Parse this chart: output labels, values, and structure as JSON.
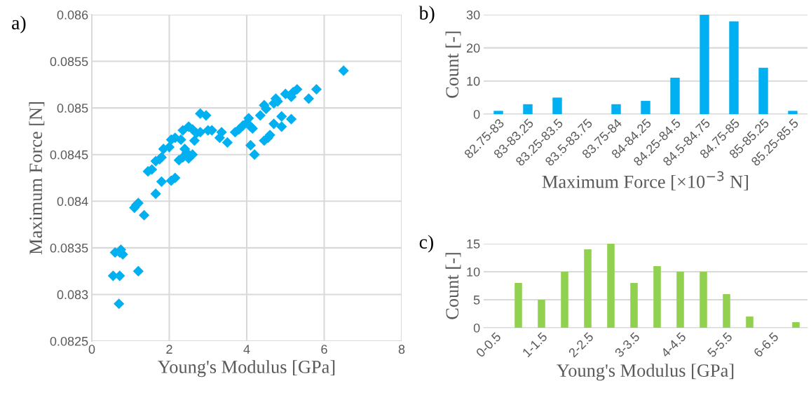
{
  "chart_data": [
    {
      "type": "scatter",
      "xlabel": "Young's Modulus [GPa]",
      "ylabel": "Maximum Force [N]",
      "annotations": [
        "a)"
      ],
      "marker": "diamond",
      "grid": true,
      "xlim": [
        0,
        8
      ],
      "xticks": [
        0,
        2,
        4,
        6,
        8
      ],
      "ylim": [
        0.0825,
        0.086
      ],
      "yticks": [
        0.0825,
        0.083,
        0.0835,
        0.084,
        0.0845,
        0.085,
        0.0855,
        0.086
      ],
      "series": [
        {
          "color": "#00b0f0",
          "x": [
            0.55,
            0.72,
            0.7,
            1.2,
            0.6,
            0.75,
            0.8,
            0.72,
            1.35,
            1.1,
            1.2,
            1.15,
            1.65,
            1.8,
            2.05,
            2.15,
            1.45,
            1.55,
            1.65,
            1.75,
            1.8,
            1.85,
            2.0,
            2.05,
            2.15,
            2.3,
            2.25,
            2.35,
            2.4,
            2.45,
            2.5,
            2.6,
            2.35,
            2.5,
            2.6,
            2.7,
            2.65,
            2.8,
            2.8,
            2.95,
            3.0,
            3.1,
            3.3,
            3.35,
            3.5,
            3.7,
            3.8,
            3.9,
            4.0,
            4.05,
            4.1,
            4.15,
            4.1,
            4.2,
            4.35,
            4.45,
            4.5,
            4.45,
            4.55,
            4.6,
            4.7,
            4.7,
            4.8,
            4.75,
            4.9,
            4.9,
            5.0,
            5.15,
            5.15,
            5.2,
            5.3,
            5.6,
            5.8,
            6.5
          ],
          "values": [
            0.0832,
            0.0832,
            0.0829,
            0.08325,
            0.08345,
            0.08348,
            0.08343,
            0.08345,
            0.08385,
            0.08393,
            0.08398,
            0.08396,
            0.08408,
            0.08421,
            0.08422,
            0.08425,
            0.08432,
            0.08434,
            0.08443,
            0.08445,
            0.08447,
            0.08456,
            0.08458,
            0.08466,
            0.08468,
            0.08466,
            0.08444,
            0.08447,
            0.08456,
            0.08452,
            0.08446,
            0.0845,
            0.08476,
            0.0848,
            0.08477,
            0.08473,
            0.08465,
            0.08474,
            0.08494,
            0.08492,
            0.08476,
            0.08476,
            0.08468,
            0.08474,
            0.08463,
            0.08474,
            0.08477,
            0.08481,
            0.08484,
            0.08489,
            0.0848,
            0.08478,
            0.0846,
            0.0845,
            0.08492,
            0.08503,
            0.08499,
            0.08465,
            0.08468,
            0.08471,
            0.08483,
            0.08505,
            0.08507,
            0.0851,
            0.08491,
            0.0848,
            0.08515,
            0.08488,
            0.08512,
            0.08517,
            0.0852,
            0.0851,
            0.0852,
            0.0854
          ]
        }
      ]
    },
    {
      "type": "bar",
      "xlabel": "Maximum Force [×10$^{−3}$ N]",
      "ylabel": "Count [-]",
      "annotations": [
        "b)"
      ],
      "grid": "y",
      "ylim": [
        0,
        30
      ],
      "yticks": [
        0,
        10,
        20,
        30
      ],
      "categories": [
        "82.75-83",
        "83-83.25",
        "83.25-83.5",
        "83.5-83.75",
        "83.75-84",
        "84-84.25",
        "84.25-84.5",
        "84.5-84.75",
        "84.75-85",
        "85-85.25",
        "85.25-85.5"
      ],
      "series": [
        {
          "color": "#00b0f0",
          "values": [
            1,
            3,
            5,
            0,
            3,
            4,
            11,
            30,
            28,
            14,
            1
          ]
        }
      ]
    },
    {
      "type": "bar",
      "xlabel": "Young's Modulus [GPa]",
      "ylabel": "Count [-]",
      "annotations": [
        "c)"
      ],
      "grid": "y",
      "ylim": [
        0,
        15
      ],
      "yticks": [
        0,
        5,
        10,
        15
      ],
      "categories": [
        "0-0.5",
        null,
        "1-1.5",
        null,
        "2-2.5",
        null,
        "3-3.5",
        null,
        "4-4.5",
        null,
        "5-5.5",
        null,
        "6-6.5",
        null
      ],
      "series": [
        {
          "color": "#92d050",
          "values": [
            0,
            8,
            5,
            10,
            14,
            15,
            8,
            11,
            10,
            10,
            6,
            2,
            0,
            1
          ]
        }
      ]
    }
  ]
}
